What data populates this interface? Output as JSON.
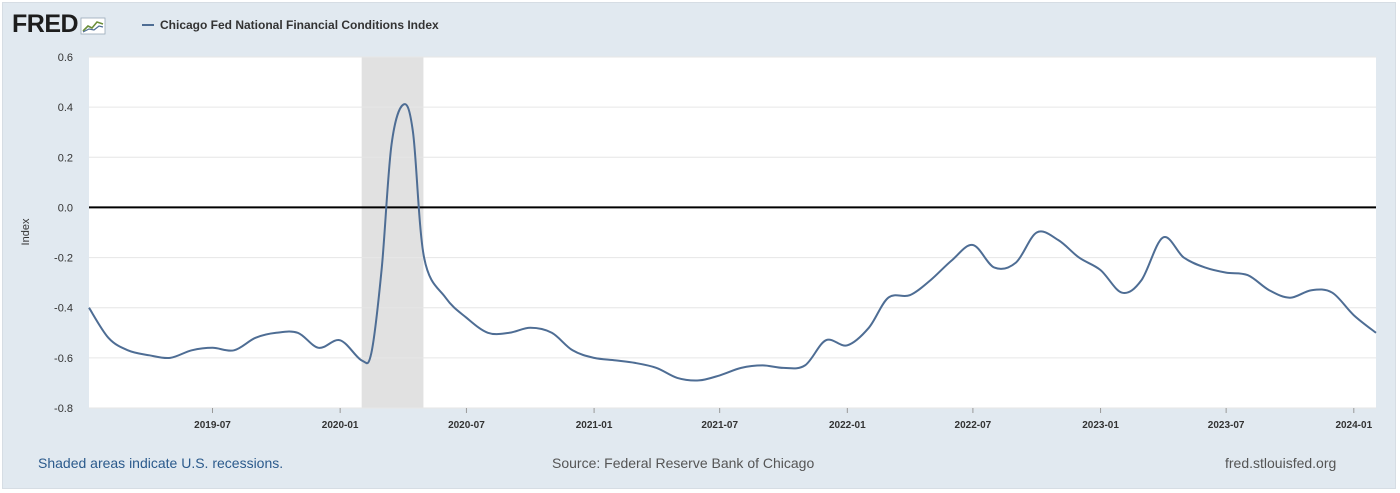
{
  "header": {
    "logo_text": "FRED",
    "logo_icon": "chart-line-icon",
    "legend_label": "Chicago Fed National Financial Conditions Index"
  },
  "footer": {
    "recession_note": "Shaded areas indicate U.S. recessions.",
    "source": "Source: Federal Reserve Bank of Chicago",
    "site": "fred.stlouisfed.org"
  },
  "colors": {
    "series": "#4e6d94",
    "recession": "#e1e1e1",
    "zero_line": "#000000",
    "background": "#e1e9f0"
  },
  "chart_data": {
    "type": "line",
    "title": "",
    "xlabel": "",
    "ylabel": "Index",
    "ylim": [
      -0.8,
      0.6
    ],
    "yticks": [
      0.6,
      0.4,
      0.2,
      0.0,
      -0.2,
      -0.4,
      -0.6,
      -0.8
    ],
    "ytick_labels": [
      "0.6",
      "0.4",
      "0.2",
      "0.0",
      "-0.2",
      "-0.4",
      "-0.6",
      "-0.8"
    ],
    "xlim": [
      "2019-01-04",
      "2024-02-02"
    ],
    "xticks": [
      "2019-07-01",
      "2020-01-01",
      "2020-07-01",
      "2021-01-01",
      "2021-07-01",
      "2022-01-01",
      "2022-07-01",
      "2023-01-01",
      "2023-07-01",
      "2024-01-01"
    ],
    "xtick_labels": [
      "2019-07",
      "2020-01",
      "2020-07",
      "2021-01",
      "2021-07",
      "2022-01",
      "2022-07",
      "2023-01",
      "2023-07",
      "2024-01"
    ],
    "recessions": [
      {
        "start": "2020-02-01",
        "end": "2020-04-30"
      }
    ],
    "reference_line": 0.0,
    "grid": true,
    "legend": "top-left",
    "series": [
      {
        "name": "Chicago Fed National Financial Conditions Index",
        "x": [
          "2019-01-04",
          "2019-02-01",
          "2019-03-01",
          "2019-04-01",
          "2019-05-01",
          "2019-06-01",
          "2019-07-01",
          "2019-08-01",
          "2019-09-01",
          "2019-10-01",
          "2019-11-01",
          "2019-12-01",
          "2020-01-01",
          "2020-02-01",
          "2020-02-15",
          "2020-03-01",
          "2020-03-15",
          "2020-04-01",
          "2020-04-15",
          "2020-05-01",
          "2020-06-01",
          "2020-07-01",
          "2020-08-01",
          "2020-09-01",
          "2020-10-01",
          "2020-11-01",
          "2020-12-01",
          "2021-01-01",
          "2021-02-01",
          "2021-03-01",
          "2021-04-01",
          "2021-05-01",
          "2021-06-01",
          "2021-07-01",
          "2021-08-01",
          "2021-09-01",
          "2021-10-01",
          "2021-11-01",
          "2021-12-01",
          "2022-01-01",
          "2022-02-01",
          "2022-03-01",
          "2022-04-01",
          "2022-05-01",
          "2022-06-01",
          "2022-07-01",
          "2022-08-01",
          "2022-09-01",
          "2022-10-01",
          "2022-11-01",
          "2022-12-01",
          "2023-01-01",
          "2023-02-01",
          "2023-03-01",
          "2023-04-01",
          "2023-05-01",
          "2023-06-01",
          "2023-07-01",
          "2023-08-01",
          "2023-09-01",
          "2023-10-01",
          "2023-11-01",
          "2023-12-01",
          "2024-01-01",
          "2024-02-02"
        ],
        "y": [
          -0.4,
          -0.52,
          -0.57,
          -0.59,
          -0.6,
          -0.57,
          -0.56,
          -0.57,
          -0.52,
          -0.5,
          -0.5,
          -0.56,
          -0.53,
          -0.61,
          -0.58,
          -0.24,
          0.25,
          0.41,
          0.3,
          -0.2,
          -0.36,
          -0.44,
          -0.5,
          -0.5,
          -0.48,
          -0.5,
          -0.57,
          -0.6,
          -0.61,
          -0.62,
          -0.64,
          -0.68,
          -0.69,
          -0.67,
          -0.64,
          -0.63,
          -0.64,
          -0.63,
          -0.53,
          -0.55,
          -0.48,
          -0.36,
          -0.35,
          -0.29,
          -0.21,
          -0.15,
          -0.24,
          -0.22,
          -0.1,
          -0.13,
          -0.2,
          -0.25,
          -0.34,
          -0.29,
          -0.12,
          -0.2,
          -0.24,
          -0.26,
          -0.27,
          -0.33,
          -0.36,
          -0.33,
          -0.34,
          -0.43,
          -0.5
        ]
      }
    ]
  }
}
